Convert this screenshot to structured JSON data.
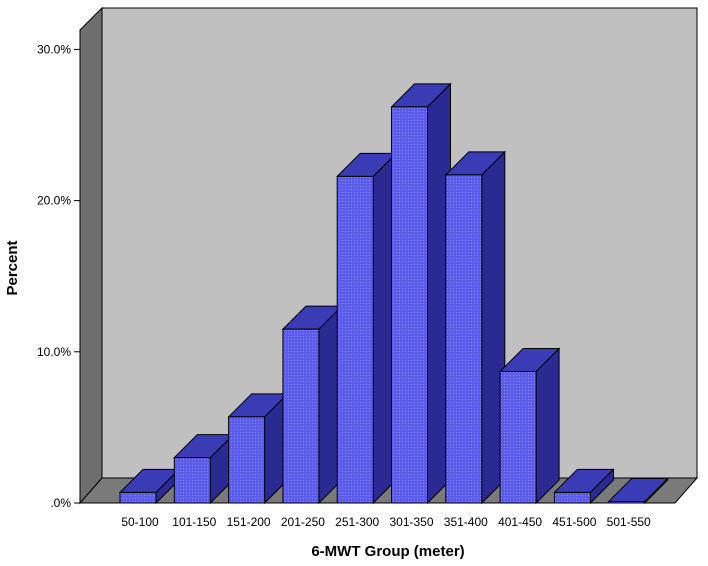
{
  "chart_data": {
    "type": "bar",
    "style": "3d",
    "categories": [
      "50-100",
      "101-150",
      "151-200",
      "201-250",
      "251-300",
      "301-350",
      "351-400",
      "401-450",
      "451-500",
      "501-550"
    ],
    "values": [
      0.7,
      3.0,
      5.7,
      11.5,
      21.6,
      26.2,
      21.7,
      8.7,
      0.7,
      0.1
    ],
    "xlabel": "6-MWT Group (meter)",
    "ylabel": "Percent",
    "ylim": [
      0,
      30
    ],
    "yticks": [
      0,
      10,
      20,
      30
    ],
    "ytick_labels": [
      ".0%",
      "10.0%",
      "20.0%",
      "30.0%"
    ],
    "grid": false,
    "colors": {
      "bar_front": "#5a5cf0",
      "bar_side": "#2a2a92",
      "bar_top": "#3a3cb6",
      "wall": "#c0c0c0",
      "wall_side": "#6e6e6e",
      "floor": "#7a7a7a"
    }
  }
}
